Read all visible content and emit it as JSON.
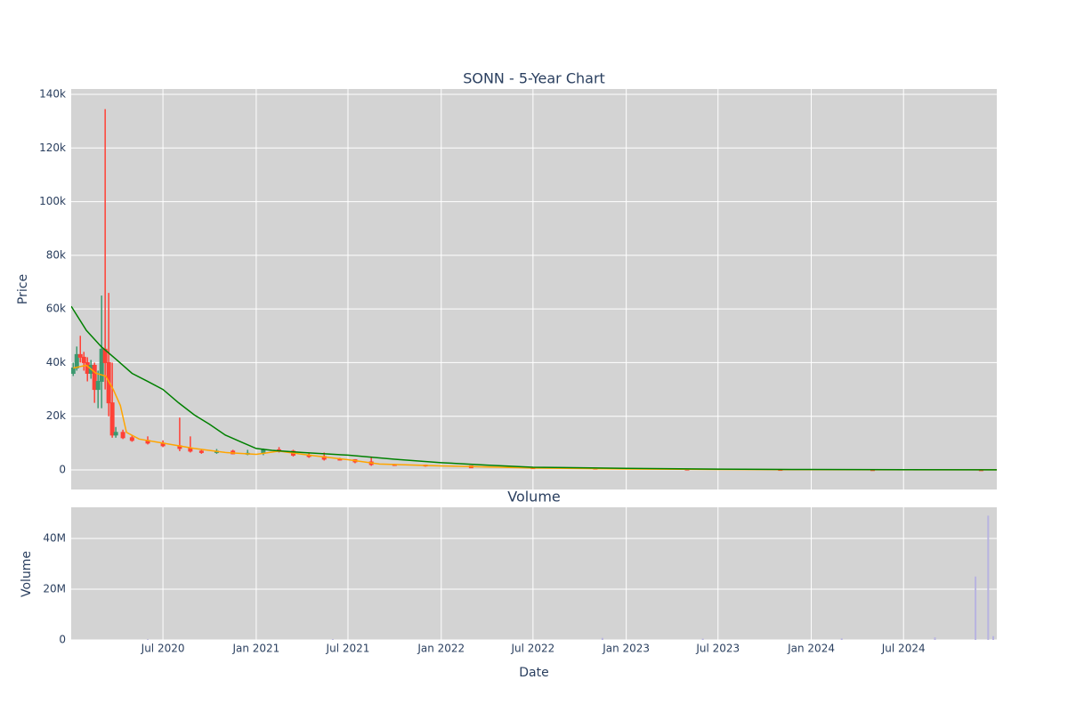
{
  "chart_data": [
    {
      "type": "candlestick",
      "title": "SONN - 5-Year Chart",
      "ylabel": "Price",
      "xlim": [
        "2020-01-02",
        "2025-01-01"
      ],
      "ylim": [
        -7300,
        142000
      ],
      "yticks": [
        0,
        {
          "value": 20000,
          "label": "20k"
        },
        {
          "value": 40000,
          "label": "40k"
        },
        {
          "value": 60000,
          "label": "60k"
        },
        {
          "value": 80000,
          "label": "80k"
        },
        {
          "value": 100000,
          "label": "100k"
        },
        {
          "value": 120000,
          "label": "120k"
        },
        {
          "value": 140000,
          "label": "140k"
        }
      ],
      "grid": true,
      "background": "#d3d3d3",
      "increasing_color": "#3d9970",
      "decreasing_color": "#ff4136",
      "x": [
        "2020-01-06",
        "2020-01-13",
        "2020-01-20",
        "2020-01-27",
        "2020-02-03",
        "2020-02-10",
        "2020-02-17",
        "2020-02-24",
        "2020-03-02",
        "2020-03-09",
        "2020-03-16",
        "2020-03-23",
        "2020-03-30",
        "2020-04-13",
        "2020-05-01",
        "2020-06-01",
        "2020-07-01",
        "2020-08-03",
        "2020-08-24",
        "2020-09-15",
        "2020-10-15",
        "2020-11-16",
        "2020-12-15",
        "2021-01-15",
        "2021-02-15",
        "2021-03-15",
        "2021-04-15",
        "2021-05-15",
        "2021-06-15",
        "2021-07-15",
        "2021-08-16",
        "2021-10-01",
        "2021-12-01",
        "2022-03-01",
        "2022-07-01",
        "2022-11-01",
        "2023-05-01",
        "2023-11-01",
        "2024-05-01",
        "2024-12-01"
      ],
      "open": [
        36000,
        38000,
        43000,
        42000,
        40000,
        36000,
        39000,
        30000,
        33000,
        45000,
        40000,
        25000,
        13000,
        14000,
        12000,
        11000,
        10000,
        9000,
        8000,
        7000,
        6500,
        7000,
        6000,
        6200,
        7500,
        7000,
        5500,
        5000,
        4000,
        3800,
        3000,
        2000,
        1800,
        1500,
        800,
        600,
        300,
        150,
        80,
        40
      ],
      "high": [
        40000,
        46000,
        50000,
        44000,
        42000,
        41000,
        40000,
        37000,
        65000,
        134500,
        66000,
        40000,
        16000,
        15000,
        13000,
        12500,
        11000,
        19500,
        12500,
        7500,
        7800,
        7500,
        7500,
        8000,
        8500,
        7500,
        6500,
        6500,
        4500,
        4000,
        5000,
        2200,
        2000,
        1600,
        900,
        700,
        400,
        200,
        100,
        50
      ],
      "low": [
        35000,
        37000,
        40000,
        37000,
        33000,
        34000,
        25000,
        23000,
        23000,
        30000,
        20000,
        12000,
        12000,
        11500,
        10500,
        9500,
        8500,
        7000,
        6500,
        6000,
        6000,
        5800,
        5500,
        5500,
        6500,
        5000,
        4500,
        3500,
        3500,
        2500,
        1500,
        1500,
        1200,
        700,
        500,
        200,
        100,
        50,
        20,
        5
      ],
      "close": [
        38000,
        43000,
        42000,
        40000,
        36000,
        39000,
        30000,
        33000,
        45000,
        40000,
        25000,
        13000,
        14000,
        12000,
        11000,
        10000,
        9000,
        8000,
        7000,
        6500,
        7000,
        6000,
        6200,
        7500,
        7000,
        5500,
        5000,
        4000,
        3800,
        3000,
        2000,
        1800,
        1500,
        800,
        600,
        300,
        150,
        80,
        40,
        10
      ],
      "lines": [
        {
          "color": "#ffa500",
          "x": [
            "2020-01-06",
            "2020-02-01",
            "2020-02-20",
            "2020-03-10",
            "2020-03-25",
            "2020-04-08",
            "2020-04-20",
            "2020-05-15",
            "2020-07-01",
            "2020-09-01",
            "2020-11-01",
            "2021-01-01",
            "2021-02-15",
            "2021-04-15",
            "2021-07-01",
            "2021-09-01",
            "2022-01-01",
            "2022-07-01",
            "2023-01-01",
            "2023-07-01",
            "2024-01-01",
            "2025-01-01"
          ],
          "values": [
            38000,
            39000,
            36000,
            35000,
            30000,
            24000,
            14000,
            11500,
            10000,
            8000,
            6500,
            5800,
            7000,
            5500,
            3800,
            2200,
            1500,
            700,
            350,
            150,
            80,
            20
          ]
        },
        {
          "color": "#008000",
          "x": [
            "2020-01-02",
            "2020-02-01",
            "2020-03-01",
            "2020-04-01",
            "2020-05-01",
            "2020-06-01",
            "2020-07-01",
            "2020-08-01",
            "2020-09-01",
            "2020-10-01",
            "2020-11-01",
            "2020-12-01",
            "2021-01-01",
            "2021-02-01",
            "2021-04-01",
            "2021-07-01",
            "2021-10-01",
            "2022-01-01",
            "2022-04-01",
            "2022-07-01",
            "2023-01-01",
            "2023-07-01",
            "2024-01-01",
            "2025-01-01"
          ],
          "values": [
            61000,
            52000,
            46000,
            41000,
            36000,
            33000,
            30000,
            25000,
            20500,
            17000,
            13000,
            10500,
            8000,
            7300,
            6500,
            5500,
            4000,
            2700,
            1800,
            1000,
            600,
            300,
            150,
            50
          ]
        }
      ]
    },
    {
      "type": "bar",
      "title": "Volume",
      "ylabel": "Volume",
      "xlabel": "Date",
      "xlim": [
        "2020-01-02",
        "2025-01-01"
      ],
      "ylim": [
        0,
        52300000
      ],
      "xticks": [
        {
          "value": "2020-07-01",
          "label": "Jul 2020"
        },
        {
          "value": "2021-01-01",
          "label": "Jan 2021"
        },
        {
          "value": "2021-07-01",
          "label": "Jul 2021"
        },
        {
          "value": "2022-01-01",
          "label": "Jan 2022"
        },
        {
          "value": "2022-07-01",
          "label": "Jul 2022"
        },
        {
          "value": "2023-01-01",
          "label": "Jan 2023"
        },
        {
          "value": "2023-07-01",
          "label": "Jul 2023"
        },
        {
          "value": "2024-01-01",
          "label": "Jan 2024"
        },
        {
          "value": "2024-07-01",
          "label": "Jul 2024"
        }
      ],
      "yticks": [
        0,
        {
          "value": 20000000,
          "label": "20M"
        },
        {
          "value": 40000000,
          "label": "40M"
        }
      ],
      "grid": true,
      "background": "#d3d3d3",
      "color": "#b8b4e0",
      "x": [
        "2020-06-01",
        "2021-06-01",
        "2022-11-15",
        "2023-06-01",
        "2024-03-01",
        "2024-09-01",
        "2024-11-20",
        "2024-12-15",
        "2024-12-25"
      ],
      "values": [
        200000,
        300000,
        800000,
        500000,
        600000,
        1000000,
        25000000,
        49000000,
        1500000
      ]
    }
  ]
}
